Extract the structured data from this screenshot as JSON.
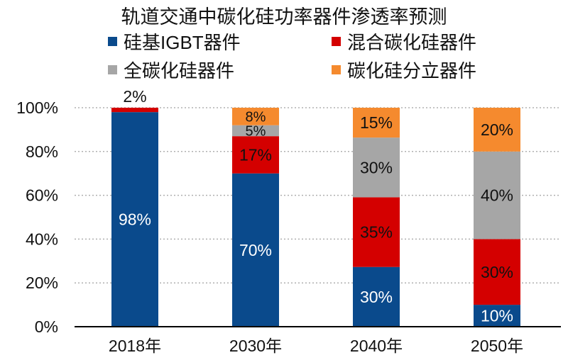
{
  "chart_data": {
    "type": "bar",
    "stacked": true,
    "normalized": true,
    "title": "轨道交通中碳化硅功率器件渗透率预测",
    "categories": [
      "2018年",
      "2030年",
      "2040年",
      "2050年"
    ],
    "series": [
      {
        "name": "硅基IGBT器件",
        "color": "#0a4a8c",
        "values": [
          98,
          70,
          30,
          10
        ]
      },
      {
        "name": "混合碳化硅器件",
        "color": "#d40000",
        "values": [
          2,
          17,
          35,
          30
        ]
      },
      {
        "name": "全碳化硅器件",
        "color": "#a6a6a6",
        "values": [
          0,
          5,
          30,
          40
        ]
      },
      {
        "name": "碳化硅分立器件",
        "color": "#f58a2e",
        "values": [
          0,
          8,
          15,
          20
        ]
      }
    ],
    "ylim": [
      0,
      100
    ],
    "yticks": [
      "0%",
      "20%",
      "40%",
      "60%",
      "80%",
      "100%"
    ],
    "grid": true,
    "legend_position": "top"
  }
}
